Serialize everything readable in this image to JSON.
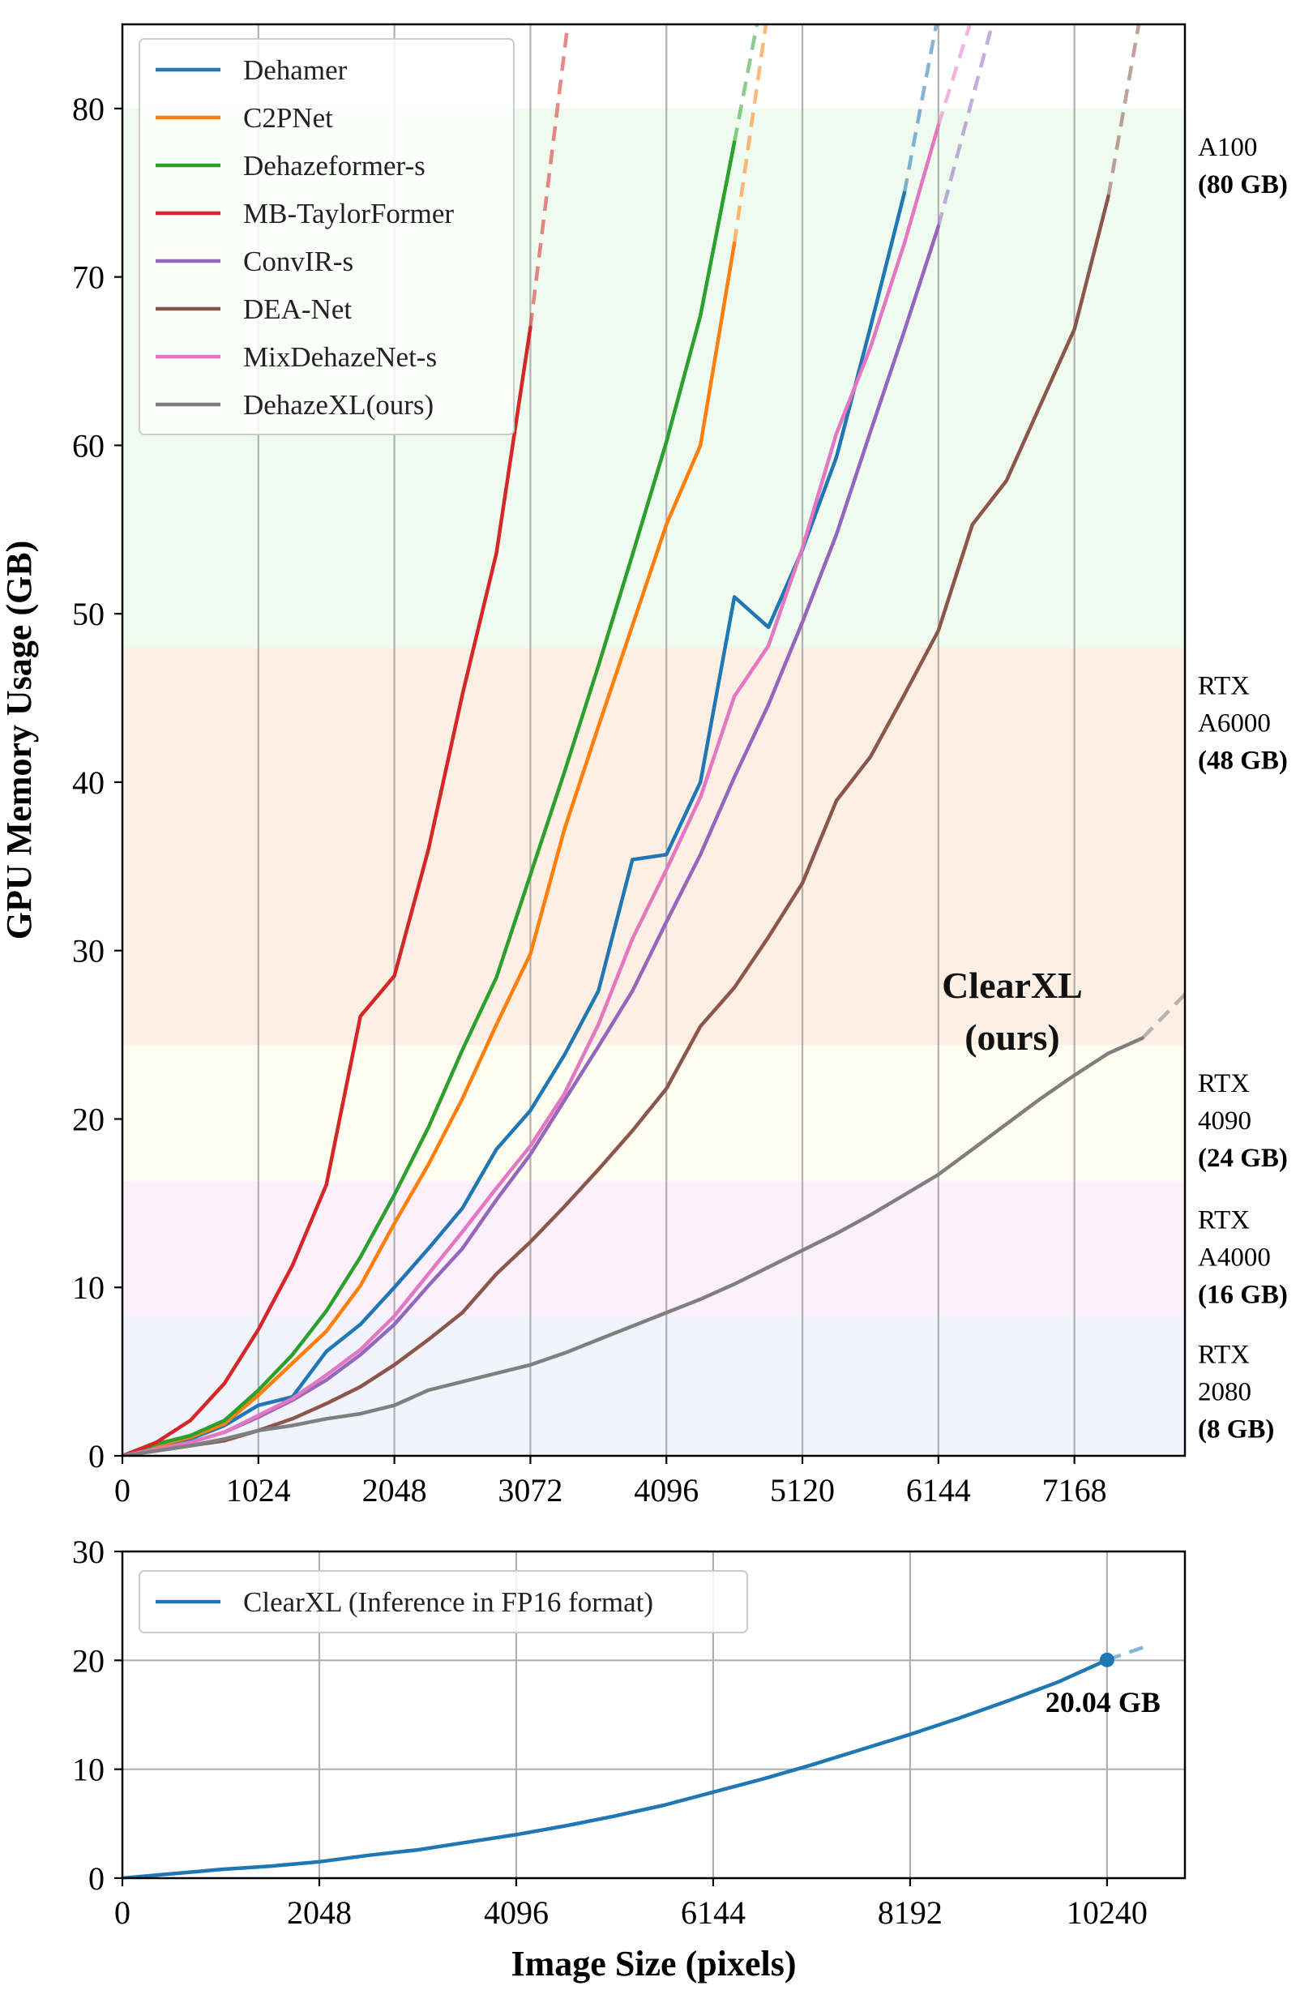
{
  "chart_data": [
    {
      "type": "line",
      "ylabel": "GPU Memory Usage (GB)",
      "xlim": [
        0,
        8000
      ],
      "ylim": [
        0,
        85
      ],
      "xticks": [
        0,
        1024,
        2048,
        3072,
        4096,
        5120,
        6144,
        7168
      ],
      "yticks": [
        0,
        10,
        20,
        30,
        40,
        50,
        60,
        70,
        80
      ],
      "grid": "vertical",
      "legend": "top-left",
      "gpu_tiers": [
        {
          "line1": "A100",
          "line2": "",
          "cap": "(80 GB)",
          "from": 48,
          "to": 80,
          "color": "#effbef"
        },
        {
          "line1": "RTX",
          "line2": "A6000",
          "cap": "(48 GB)",
          "from": 24.4,
          "to": 48,
          "color": "#fdefe3"
        },
        {
          "line1": "RTX",
          "line2": "4090",
          "cap": "(24 GB)",
          "from": 16.3,
          "to": 24.4,
          "color": "#fefdf0"
        },
        {
          "line1": "RTX",
          "line2": "A4000",
          "cap": "(16 GB)",
          "from": 8.3,
          "to": 16.3,
          "color": "#fdf0fd"
        },
        {
          "line1": "RTX",
          "line2": "2080",
          "cap": "(8 GB)",
          "from": 0,
          "to": 8.3,
          "color": "#f1f3fd"
        }
      ],
      "annotation": {
        "line1": "ClearXL",
        "line2": "(ours)",
        "x": 6700,
        "y": 27.2
      },
      "series": [
        {
          "name": "Dehamer",
          "color": "#1f77b4",
          "x": [
            0,
            256,
            512,
            768,
            1024,
            1280,
            1536,
            1792,
            2048,
            2304,
            2560,
            2816,
            3072,
            3328,
            3584,
            3840,
            4096,
            4352,
            4608,
            4864,
            5120,
            5376,
            5632,
            5888
          ],
          "y": [
            0,
            0.5,
            1,
            1.8,
            3,
            3.5,
            6.2,
            7.8,
            10,
            12.3,
            14.7,
            18.2,
            20.5,
            23.8,
            27.6,
            35.4,
            35.7,
            40,
            51,
            49.2,
            53.8,
            59.3,
            67,
            75
          ],
          "ext": [
            [
              5888,
              75
            ],
            [
              6200,
              88
            ]
          ]
        },
        {
          "name": "C2PNet",
          "color": "#ff7f0e",
          "x": [
            0,
            256,
            512,
            768,
            1024,
            1280,
            1536,
            1792,
            2048,
            2304,
            2560,
            2816,
            3072,
            3328,
            3584,
            3840,
            4096,
            4352,
            4608
          ],
          "y": [
            0,
            0.6,
            1.1,
            1.9,
            3.6,
            5.5,
            7.4,
            10.1,
            13.8,
            17.3,
            21.2,
            25.6,
            29.8,
            37.2,
            43.3,
            49.3,
            55.3,
            60,
            72
          ],
          "ext": [
            [
              4608,
              72
            ],
            [
              4900,
              88
            ]
          ]
        },
        {
          "name": "Dehazeformer-s",
          "color": "#2ca02c",
          "x": [
            0,
            256,
            512,
            768,
            1024,
            1280,
            1536,
            1792,
            2048,
            2304,
            2560,
            2816,
            3072,
            3328,
            3584,
            3840,
            4096,
            4352,
            4608
          ],
          "y": [
            0,
            0.7,
            1.2,
            2.1,
            3.9,
            6,
            8.6,
            11.8,
            15.5,
            19.5,
            24.1,
            28.4,
            34.5,
            40.6,
            46.9,
            53.5,
            60.2,
            67.7,
            78
          ],
          "ext": [
            [
              4608,
              78
            ],
            [
              4850,
              88
            ]
          ]
        },
        {
          "name": "MB-TaylorFormer",
          "color": "#d62728",
          "x": [
            0,
            256,
            512,
            768,
            1024,
            1280,
            1536,
            1792,
            2048,
            2304,
            2560,
            2816,
            3072
          ],
          "y": [
            0,
            0.8,
            2.1,
            4.3,
            7.5,
            11.3,
            16.1,
            26.1,
            28.5,
            36,
            45.2,
            53.6,
            67
          ],
          "ext": [
            [
              3072,
              67
            ],
            [
              3400,
              88
            ]
          ]
        },
        {
          "name": "ConvIR-s",
          "color": "#9467bd",
          "x": [
            0,
            256,
            512,
            768,
            1024,
            1280,
            1536,
            1792,
            2048,
            2304,
            2560,
            2816,
            3072,
            3328,
            3584,
            3840,
            4096,
            4352,
            4608,
            4864,
            5120,
            5376,
            5632,
            5888,
            6144
          ],
          "y": [
            0,
            0.4,
            0.8,
            1.4,
            2.3,
            3.3,
            4.5,
            6,
            7.8,
            10.1,
            12.3,
            15.2,
            17.9,
            21.1,
            24.3,
            27.6,
            31.7,
            35.7,
            40.3,
            44.6,
            49.5,
            54.7,
            60.8,
            66.8,
            73
          ],
          "ext": [
            [
              6144,
              73
            ],
            [
              6650,
              88
            ]
          ]
        },
        {
          "name": "DEA-Net",
          "color": "#8c564b",
          "x": [
            0,
            256,
            512,
            768,
            1024,
            1280,
            1536,
            1792,
            2048,
            2304,
            2560,
            2816,
            3072,
            3328,
            3584,
            3840,
            4096,
            4352,
            4608,
            4864,
            5120,
            5376,
            5632,
            5888,
            6144,
            6400,
            6656,
            6912,
            7168,
            7424
          ],
          "y": [
            0,
            0.3,
            0.6,
            0.9,
            1.5,
            2.2,
            3.1,
            4.1,
            5.4,
            6.9,
            8.5,
            10.8,
            12.7,
            14.8,
            17,
            19.3,
            21.8,
            25.5,
            27.8,
            30.8,
            34,
            38.9,
            41.5,
            45.2,
            49,
            55.3,
            57.9,
            62.4,
            66.9,
            74.8
          ],
          "ext": [
            [
              7424,
              74.8
            ],
            [
              7720,
              88
            ]
          ]
        },
        {
          "name": "MixDehazeNet-s",
          "color": "#e377c2",
          "x": [
            0,
            256,
            512,
            768,
            1024,
            1280,
            1536,
            1792,
            2048,
            2304,
            2560,
            2816,
            3072,
            3328,
            3584,
            3840,
            4096,
            4352,
            4608,
            4864,
            5120,
            5376,
            5632,
            5888,
            6144
          ],
          "y": [
            0,
            0.4,
            0.8,
            1.4,
            2.4,
            3.4,
            4.8,
            6.3,
            8.3,
            10.8,
            13.3,
            15.9,
            18.4,
            21.5,
            25.6,
            30.7,
            34.8,
            39.1,
            45.1,
            48.1,
            53.9,
            60.7,
            65.8,
            72,
            79
          ],
          "ext": [
            [
              6144,
              79
            ],
            [
              6500,
              88
            ]
          ]
        },
        {
          "name": "DehazeXL(ours)",
          "color": "#7f7f7f",
          "x": [
            0,
            256,
            512,
            768,
            1024,
            1280,
            1536,
            1792,
            2048,
            2304,
            2560,
            2816,
            3072,
            3328,
            3584,
            3840,
            4096,
            4352,
            4608,
            4864,
            5120,
            5376,
            5632,
            5888,
            6144,
            6400,
            6656,
            6912,
            7168,
            7424,
            7680
          ],
          "y": [
            0,
            0.3,
            0.6,
            1,
            1.5,
            1.8,
            2.2,
            2.5,
            3,
            3.9,
            4.4,
            4.9,
            5.4,
            6.1,
            6.9,
            7.7,
            8.5,
            9.3,
            10.2,
            11.2,
            12.2,
            13.2,
            14.3,
            15.5,
            16.7,
            18.2,
            19.7,
            21.2,
            22.6,
            23.9,
            24.8
          ],
          "ext": [
            [
              7680,
              24.8
            ],
            [
              8000,
              27.4
            ]
          ]
        }
      ]
    },
    {
      "type": "line",
      "xlabel": "Image Size (pixels)",
      "xlim": [
        0,
        11050
      ],
      "ylim": [
        0,
        30
      ],
      "xticks": [
        0,
        2048,
        4096,
        6144,
        8192,
        10240
      ],
      "yticks": [
        0,
        10,
        20,
        30
      ],
      "grid": "both",
      "legend": "top-left",
      "annotation": {
        "label": "20.04 GB",
        "x": 10240,
        "y": 20.04
      },
      "series": [
        {
          "name": "ClearXL (Inference in FP16 format)",
          "color": "#1f77b4",
          "x": [
            0,
            512,
            1024,
            1536,
            2048,
            2560,
            3072,
            3584,
            4096,
            4608,
            5120,
            5632,
            6144,
            6656,
            7168,
            7680,
            8192,
            8704,
            9216,
            9728,
            10240
          ],
          "y": [
            0,
            0.4,
            0.8,
            1.1,
            1.5,
            2.1,
            2.6,
            3.3,
            4,
            4.8,
            5.7,
            6.7,
            7.9,
            9.1,
            10.4,
            11.8,
            13.2,
            14.7,
            16.3,
            18,
            20.04
          ],
          "ext": [
            [
              10240,
              20.04
            ],
            [
              10650,
              21.3
            ]
          ]
        }
      ]
    }
  ]
}
